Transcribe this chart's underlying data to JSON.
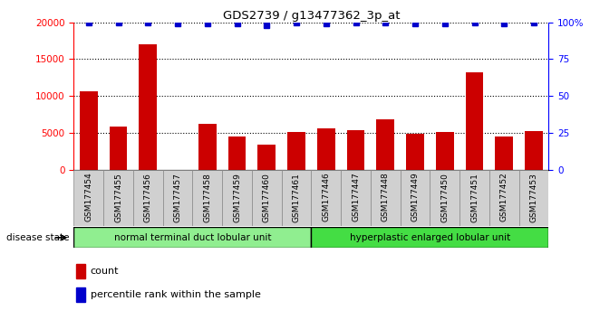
{
  "title": "GDS2739 / g13477362_3p_at",
  "samples": [
    "GSM177454",
    "GSM177455",
    "GSM177456",
    "GSM177457",
    "GSM177458",
    "GSM177459",
    "GSM177460",
    "GSM177461",
    "GSM177446",
    "GSM177447",
    "GSM177448",
    "GSM177449",
    "GSM177450",
    "GSM177451",
    "GSM177452",
    "GSM177453"
  ],
  "counts": [
    10600,
    5800,
    17000,
    0,
    6200,
    4500,
    3400,
    5100,
    5600,
    5400,
    6800,
    4900,
    5100,
    13200,
    4500,
    5200
  ],
  "percentiles": [
    100,
    100,
    100,
    99,
    99,
    99,
    98,
    100,
    99,
    100,
    100,
    99,
    99,
    100,
    99,
    100
  ],
  "groups": [
    {
      "label": "normal terminal duct lobular unit",
      "start": 0,
      "end": 8,
      "color": "#90EE90"
    },
    {
      "label": "hyperplastic enlarged lobular unit",
      "start": 8,
      "end": 16,
      "color": "#44DD44"
    }
  ],
  "bar_color": "#CC0000",
  "dot_color": "#0000CC",
  "ylim_left": [
    0,
    20000
  ],
  "ylim_right": [
    0,
    100
  ],
  "yticks_left": [
    0,
    5000,
    10000,
    15000,
    20000
  ],
  "yticks_right": [
    0,
    25,
    50,
    75,
    100
  ],
  "ytick_labels_right": [
    "0",
    "25",
    "50",
    "75",
    "100%"
  ],
  "grid_values": [
    5000,
    10000,
    15000,
    20000
  ],
  "bar_width": 0.6,
  "label_count": "count",
  "label_percentile": "percentile rank within the sample",
  "disease_state_label": "disease state",
  "axis_bg_color": "#ffffff",
  "tick_box_color": "#d0d0d0"
}
